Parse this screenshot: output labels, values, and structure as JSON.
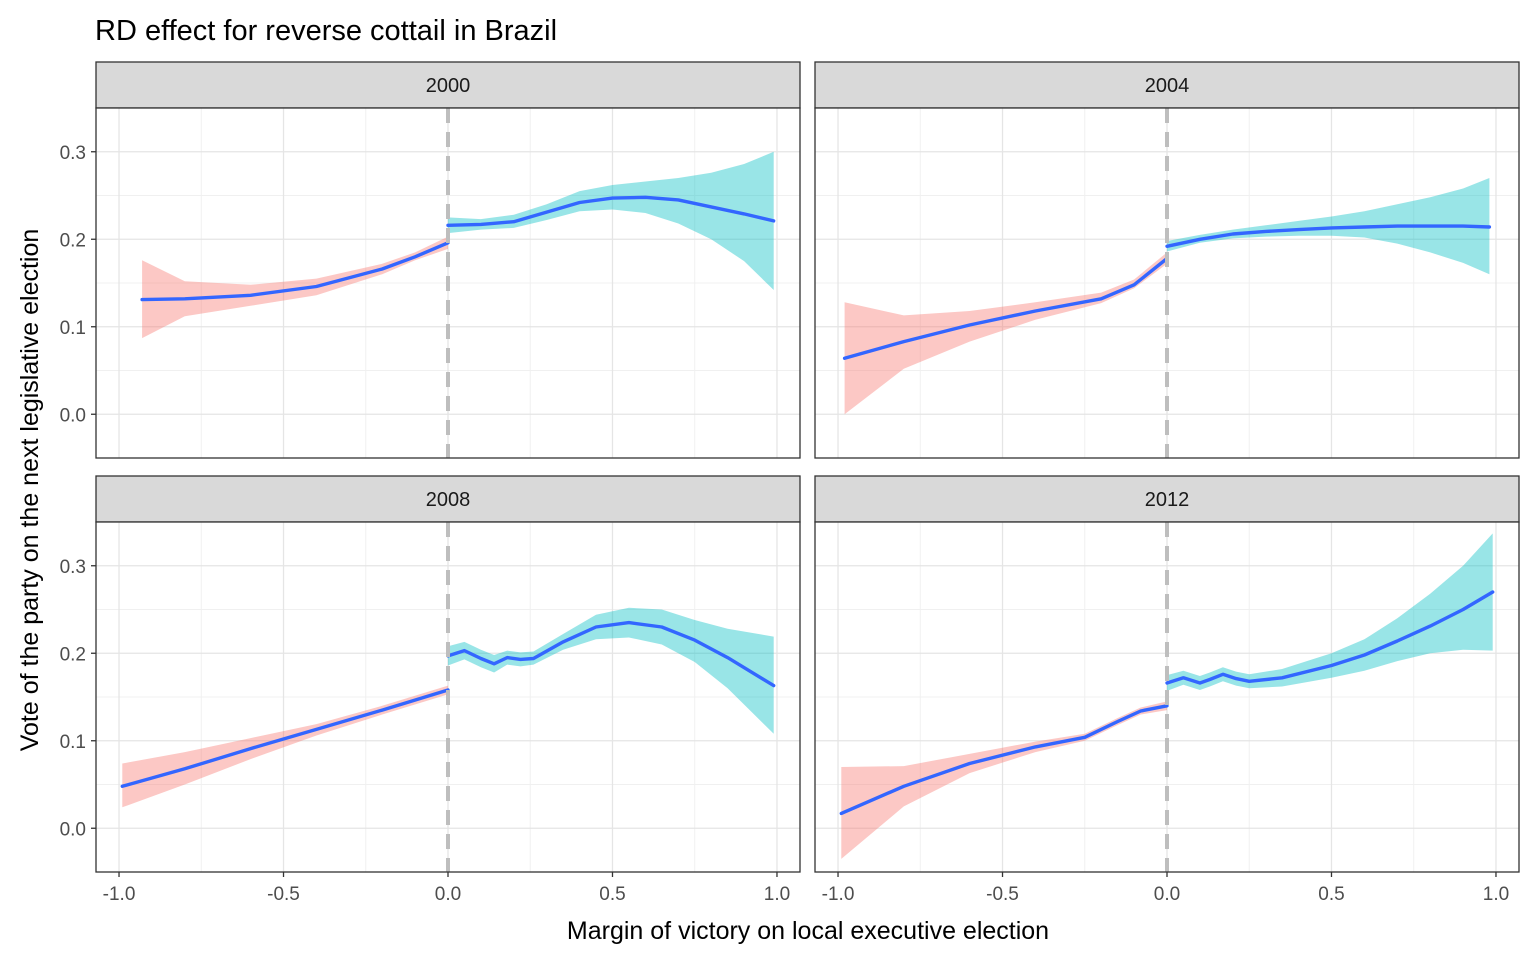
{
  "chart_data": {
    "type": "line",
    "title": "RD effect for reverse cottail in Brazil",
    "xlabel": "Margin of victory on local executive election",
    "ylabel": "Vote of the party on the next legislative election",
    "xlim": [
      -1.07,
      1.07
    ],
    "ylim": [
      -0.05,
      0.35
    ],
    "xticks": [
      -1.0,
      -0.5,
      0.0,
      0.5,
      1.0
    ],
    "xtick_labels": [
      "-1.0",
      "-0.5",
      "0.0",
      "0.5",
      "1.0"
    ],
    "yticks": [
      0.0,
      0.1,
      0.2,
      0.3
    ],
    "ytick_labels": [
      "0.0",
      "0.1",
      "0.2",
      "0.3"
    ],
    "cutoff": 0.0,
    "grid": true,
    "colors": {
      "line": "#3366FF",
      "ribbon_left": "#F8766D",
      "ribbon_right": "#00BFC4",
      "cutoff_line": "#BEBEBE",
      "strip_bg": "#D9D9D9"
    },
    "panels": [
      {
        "label": "2000",
        "left": {
          "x": [
            -0.93,
            -0.8,
            -0.6,
            -0.4,
            -0.2,
            -0.1,
            0.0
          ],
          "y": [
            0.131,
            0.132,
            0.136,
            0.146,
            0.166,
            0.18,
            0.196
          ],
          "lower": [
            0.087,
            0.112,
            0.124,
            0.136,
            0.16,
            0.176,
            0.189
          ],
          "upper": [
            0.176,
            0.152,
            0.148,
            0.155,
            0.172,
            0.185,
            0.203
          ]
        },
        "right": {
          "x": [
            0.0,
            0.1,
            0.2,
            0.3,
            0.4,
            0.5,
            0.6,
            0.7,
            0.8,
            0.9,
            0.99
          ],
          "y": [
            0.216,
            0.217,
            0.22,
            0.231,
            0.242,
            0.247,
            0.248,
            0.245,
            0.237,
            0.229,
            0.221
          ],
          "lower": [
            0.207,
            0.211,
            0.213,
            0.222,
            0.232,
            0.234,
            0.23,
            0.218,
            0.2,
            0.175,
            0.142
          ],
          "upper": [
            0.225,
            0.223,
            0.228,
            0.24,
            0.255,
            0.262,
            0.266,
            0.27,
            0.276,
            0.286,
            0.3
          ]
        }
      },
      {
        "label": "2004",
        "left": {
          "x": [
            -0.98,
            -0.8,
            -0.6,
            -0.4,
            -0.2,
            -0.1,
            0.0
          ],
          "y": [
            0.064,
            0.083,
            0.102,
            0.118,
            0.132,
            0.148,
            0.178
          ],
          "lower": [
            0.0,
            0.052,
            0.083,
            0.108,
            0.127,
            0.144,
            0.172
          ],
          "upper": [
            0.128,
            0.113,
            0.118,
            0.128,
            0.139,
            0.154,
            0.185
          ]
        },
        "right": {
          "x": [
            0.0,
            0.1,
            0.2,
            0.3,
            0.4,
            0.5,
            0.6,
            0.7,
            0.8,
            0.9,
            0.98
          ],
          "y": [
            0.192,
            0.2,
            0.206,
            0.209,
            0.211,
            0.213,
            0.214,
            0.215,
            0.215,
            0.215,
            0.214
          ],
          "lower": [
            0.186,
            0.196,
            0.201,
            0.203,
            0.204,
            0.204,
            0.202,
            0.195,
            0.185,
            0.173,
            0.16
          ],
          "upper": [
            0.198,
            0.205,
            0.211,
            0.216,
            0.221,
            0.226,
            0.232,
            0.24,
            0.248,
            0.258,
            0.27
          ]
        }
      },
      {
        "label": "2008",
        "left": {
          "x": [
            -0.99,
            -0.8,
            -0.6,
            -0.4,
            -0.2,
            0.0
          ],
          "y": [
            0.048,
            0.068,
            0.091,
            0.113,
            0.135,
            0.158
          ],
          "lower": [
            0.024,
            0.05,
            0.079,
            0.106,
            0.13,
            0.153
          ],
          "upper": [
            0.074,
            0.087,
            0.103,
            0.119,
            0.14,
            0.163
          ]
        },
        "right": {
          "x": [
            0.0,
            0.05,
            0.1,
            0.14,
            0.18,
            0.22,
            0.26,
            0.35,
            0.45,
            0.55,
            0.65,
            0.75,
            0.85,
            0.99
          ],
          "y": [
            0.197,
            0.203,
            0.194,
            0.188,
            0.195,
            0.193,
            0.194,
            0.213,
            0.23,
            0.235,
            0.23,
            0.215,
            0.195,
            0.163
          ],
          "lower": [
            0.186,
            0.193,
            0.184,
            0.178,
            0.187,
            0.185,
            0.187,
            0.204,
            0.216,
            0.218,
            0.21,
            0.19,
            0.16,
            0.108
          ],
          "upper": [
            0.208,
            0.213,
            0.204,
            0.198,
            0.203,
            0.201,
            0.202,
            0.222,
            0.244,
            0.252,
            0.25,
            0.238,
            0.228,
            0.219
          ]
        }
      },
      {
        "label": "2012",
        "left": {
          "x": [
            -0.99,
            -0.8,
            -0.6,
            -0.4,
            -0.25,
            -0.15,
            -0.08,
            0.0
          ],
          "y": [
            0.017,
            0.048,
            0.074,
            0.093,
            0.104,
            0.122,
            0.134,
            0.14
          ],
          "lower": [
            -0.035,
            0.025,
            0.063,
            0.087,
            0.1,
            0.118,
            0.13,
            0.135
          ],
          "upper": [
            0.07,
            0.071,
            0.085,
            0.099,
            0.108,
            0.126,
            0.138,
            0.145
          ]
        },
        "right": {
          "x": [
            0.0,
            0.05,
            0.1,
            0.13,
            0.17,
            0.21,
            0.25,
            0.35,
            0.5,
            0.6,
            0.7,
            0.8,
            0.9,
            0.99
          ],
          "y": [
            0.166,
            0.172,
            0.166,
            0.17,
            0.176,
            0.171,
            0.168,
            0.172,
            0.186,
            0.198,
            0.214,
            0.231,
            0.25,
            0.27
          ],
          "lower": [
            0.157,
            0.164,
            0.158,
            0.162,
            0.168,
            0.163,
            0.16,
            0.162,
            0.172,
            0.18,
            0.191,
            0.2,
            0.204,
            0.203
          ],
          "upper": [
            0.175,
            0.18,
            0.174,
            0.178,
            0.184,
            0.179,
            0.176,
            0.182,
            0.2,
            0.216,
            0.24,
            0.268,
            0.3,
            0.337
          ]
        }
      }
    ]
  }
}
